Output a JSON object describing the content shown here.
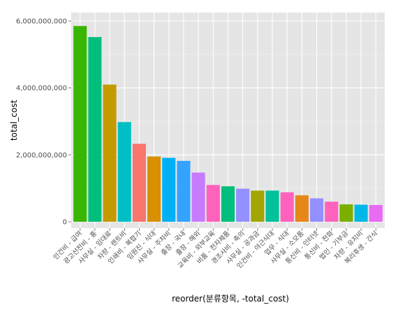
{
  "chart_data": {
    "type": "bar",
    "xlabel": "reorder(분류항목, -total_cost)",
    "ylabel": "total_cost",
    "ylim": [
      0,
      6000000000
    ],
    "y_ticks": [
      0,
      2000000000,
      4000000000,
      6000000000
    ],
    "y_tick_labels": [
      "0",
      "2,000,000,000",
      "4,000,000,000",
      "6,000,000,000"
    ],
    "grid": true,
    "legend": "none",
    "categories": [
      "인건비 - 급여",
      "광고선전비 - 홍",
      "사무실 - 임대료",
      "차량 - 렌트비",
      "인쇄비 - 복합기",
      "임원진 - 식대",
      "사무실 - 주차비",
      "출장 - 국내",
      "출장 - 해외",
      "교육비 - 외부교육",
      "비품 - 전자제품",
      "경조사비 - 축의",
      "사무실 - 공과금",
      "인건비 - 야근식대",
      "업무 - 식대",
      "사무실 - 소모품",
      "통신비 - 인터넷",
      "통신비 - 전화",
      "법인 - 기부금",
      "차량 - 유지비",
      "복리후생 - 간식"
    ],
    "values": [
      5850000000,
      5520000000,
      4100000000,
      2980000000,
      2330000000,
      1950000000,
      1910000000,
      1820000000,
      1470000000,
      1100000000,
      1060000000,
      990000000,
      930000000,
      930000000,
      880000000,
      790000000,
      700000000,
      600000000,
      520000000,
      510000000,
      500000000
    ],
    "colors": [
      "#39B600",
      "#00BF7D",
      "#C49A00",
      "#00BFC4",
      "#F8766D",
      "#D89000",
      "#00B0F6",
      "#35A2FF",
      "#C77CFF",
      "#FF62BC",
      "#00BF7D",
      "#9590FF",
      "#A3A500",
      "#00C19A",
      "#FF62BC",
      "#E7861B",
      "#9590FF",
      "#FF62BC",
      "#7CAE00",
      "#00B8E7",
      "#E76BF3"
    ]
  }
}
